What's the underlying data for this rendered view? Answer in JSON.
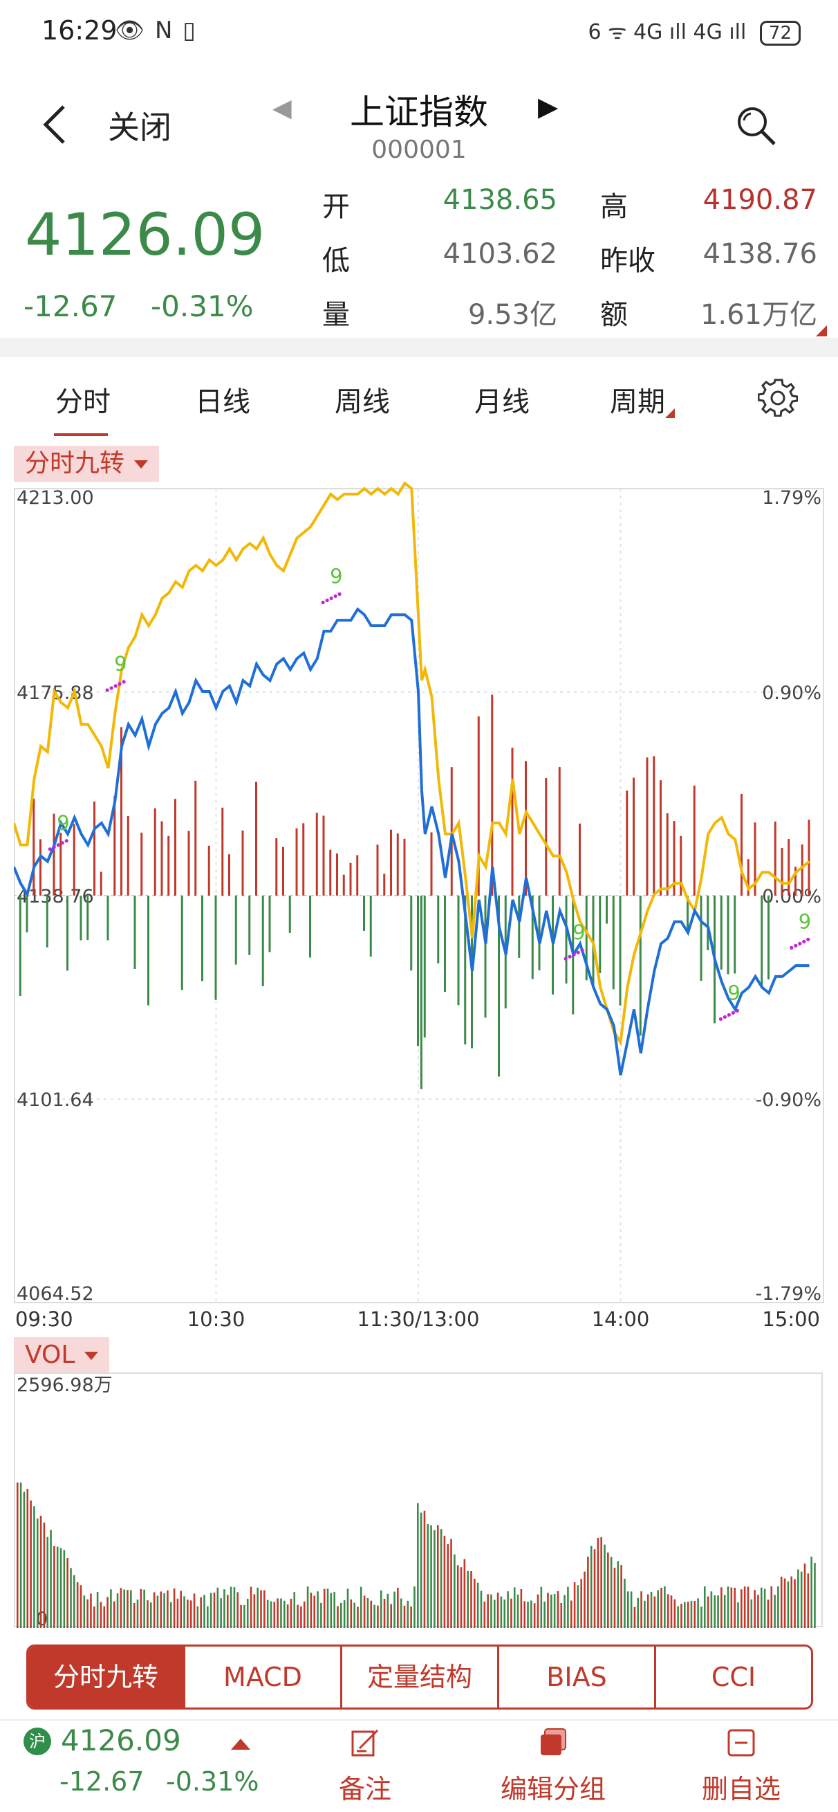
{
  "status_bar": {
    "time": "16:29",
    "left_icons": "👁 N ▯",
    "right_icons": "6 ᯤ 4G ıll 4G ıll",
    "battery": "72"
  },
  "header": {
    "close_label": "关闭",
    "title": "上证指数",
    "code": "000001"
  },
  "quote": {
    "price": "4126.09",
    "change": "-12.67",
    "change_pct": "-0.31%",
    "fields": [
      {
        "label": "开",
        "value": "4138.65",
        "color": "green"
      },
      {
        "label": "高",
        "value": "4190.87",
        "color": "red"
      },
      {
        "label": "低",
        "value": "4103.62",
        "color": "gray"
      },
      {
        "label": "昨收",
        "value": "4138.76",
        "color": "gray"
      },
      {
        "label": "量",
        "value": "9.53亿",
        "color": "gray"
      },
      {
        "label": "额",
        "value": "1.61万亿",
        "color": "gray"
      }
    ]
  },
  "tabs": [
    "分时",
    "日线",
    "周线",
    "月线",
    "周期"
  ],
  "indicator_tag": "分时九转",
  "volume_tag": "VOL",
  "indicator_tabs": [
    "分时九转",
    "MACD",
    "定量结构",
    "BIAS",
    "CCI"
  ],
  "bottom": {
    "exchange_badge": "沪",
    "price": "4126.09",
    "change": "-12.67",
    "change_pct": "-0.31%",
    "actions": [
      "备注",
      "编辑分组",
      "删自选"
    ]
  },
  "chart_data": {
    "type": "line",
    "y_left_ticks": [
      "4213.00",
      "4175.88",
      "4138.76",
      "4101.64",
      "4064.52"
    ],
    "y_right_ticks": [
      "1.79%",
      "0.90%",
      "0.00%",
      "-0.90%",
      "-1.79%"
    ],
    "x_ticks": [
      "09:30",
      "10:30",
      "11:30/13:00",
      "14:00",
      "15:00"
    ],
    "ylim": [
      4064.52,
      4213.0
    ],
    "colors": {
      "price": "#1f6fd6",
      "avg": "#f2b807",
      "up": "#c0392b",
      "down": "#3c8a4a",
      "nine": "#c026d3",
      "nine_label": "#5cc43c"
    },
    "price": [
      [
        0,
        4144
      ],
      [
        2,
        4141
      ],
      [
        4,
        4139
      ],
      [
        6,
        4144
      ],
      [
        8,
        4146
      ],
      [
        10,
        4145
      ],
      [
        12,
        4148
      ],
      [
        14,
        4152
      ],
      [
        16,
        4150
      ],
      [
        18,
        4153
      ],
      [
        20,
        4150
      ],
      [
        22,
        4148
      ],
      [
        24,
        4151
      ],
      [
        26,
        4152
      ],
      [
        28,
        4150
      ],
      [
        30,
        4156
      ],
      [
        32,
        4166
      ],
      [
        34,
        4170
      ],
      [
        36,
        4168
      ],
      [
        38,
        4171
      ],
      [
        40,
        4166
      ],
      [
        42,
        4170
      ],
      [
        44,
        4172
      ],
      [
        46,
        4173
      ],
      [
        48,
        4176
      ],
      [
        50,
        4172
      ],
      [
        52,
        4174
      ],
      [
        54,
        4178
      ],
      [
        56,
        4176
      ],
      [
        58,
        4176
      ],
      [
        60,
        4173
      ],
      [
        62,
        4176
      ],
      [
        64,
        4177
      ],
      [
        66,
        4174
      ],
      [
        68,
        4178
      ],
      [
        70,
        4177
      ],
      [
        72,
        4181
      ],
      [
        74,
        4179
      ],
      [
        76,
        4178
      ],
      [
        78,
        4181
      ],
      [
        80,
        4182
      ],
      [
        82,
        4180
      ],
      [
        84,
        4182
      ],
      [
        86,
        4183
      ],
      [
        88,
        4180
      ],
      [
        90,
        4182
      ],
      [
        92,
        4187
      ],
      [
        94,
        4187
      ],
      [
        96,
        4189
      ],
      [
        98,
        4189
      ],
      [
        100,
        4189
      ],
      [
        102,
        4191
      ],
      [
        104,
        4190
      ],
      [
        106,
        4188
      ],
      [
        108,
        4188
      ],
      [
        110,
        4188
      ],
      [
        112,
        4190
      ],
      [
        114,
        4190
      ],
      [
        116,
        4190
      ],
      [
        118,
        4189
      ],
      [
        120,
        4176
      ],
      [
        121,
        4158
      ],
      [
        122,
        4150
      ],
      [
        124,
        4155
      ],
      [
        126,
        4150
      ],
      [
        128,
        4142
      ],
      [
        130,
        4150
      ],
      [
        132,
        4145
      ],
      [
        134,
        4135
      ],
      [
        136,
        4125
      ],
      [
        138,
        4138
      ],
      [
        140,
        4130
      ],
      [
        142,
        4144
      ],
      [
        144,
        4133
      ],
      [
        146,
        4128
      ],
      [
        148,
        4138
      ],
      [
        150,
        4134
      ],
      [
        152,
        4142
      ],
      [
        154,
        4136
      ],
      [
        156,
        4130
      ],
      [
        158,
        4136
      ],
      [
        160,
        4130
      ],
      [
        162,
        4136
      ],
      [
        164,
        4133
      ],
      [
        166,
        4128
      ],
      [
        168,
        4130
      ],
      [
        170,
        4126
      ],
      [
        172,
        4122
      ],
      [
        174,
        4119
      ],
      [
        176,
        4118
      ],
      [
        178,
        4115
      ],
      [
        180,
        4106
      ],
      [
        182,
        4112
      ],
      [
        184,
        4118
      ],
      [
        186,
        4110
      ],
      [
        188,
        4118
      ],
      [
        190,
        4125
      ],
      [
        192,
        4130
      ],
      [
        194,
        4131
      ],
      [
        196,
        4134
      ],
      [
        198,
        4134
      ],
      [
        200,
        4132
      ],
      [
        202,
        4136
      ],
      [
        204,
        4134
      ],
      [
        206,
        4133
      ],
      [
        208,
        4127
      ],
      [
        210,
        4123
      ],
      [
        212,
        4120
      ],
      [
        214,
        4118
      ],
      [
        216,
        4121
      ],
      [
        218,
        4122
      ],
      [
        220,
        4124
      ],
      [
        222,
        4122
      ],
      [
        224,
        4121
      ],
      [
        226,
        4124
      ],
      [
        228,
        4124
      ],
      [
        230,
        4125
      ],
      [
        232,
        4126
      ],
      [
        234,
        4126
      ],
      [
        236,
        4126
      ]
    ],
    "avg": [
      [
        0,
        4152
      ],
      [
        2,
        4148
      ],
      [
        4,
        4148
      ],
      [
        6,
        4160
      ],
      [
        8,
        4166
      ],
      [
        10,
        4165
      ],
      [
        12,
        4176
      ],
      [
        14,
        4174
      ],
      [
        16,
        4173
      ],
      [
        18,
        4176
      ],
      [
        20,
        4170
      ],
      [
        22,
        4170
      ],
      [
        24,
        4168
      ],
      [
        26,
        4166
      ],
      [
        28,
        4162
      ],
      [
        30,
        4172
      ],
      [
        32,
        4180
      ],
      [
        34,
        4184
      ],
      [
        36,
        4186
      ],
      [
        38,
        4190
      ],
      [
        40,
        4188
      ],
      [
        42,
        4190
      ],
      [
        44,
        4193
      ],
      [
        46,
        4194
      ],
      [
        48,
        4196
      ],
      [
        50,
        4195
      ],
      [
        52,
        4198
      ],
      [
        54,
        4199
      ],
      [
        56,
        4198
      ],
      [
        58,
        4200
      ],
      [
        60,
        4199
      ],
      [
        62,
        4200
      ],
      [
        64,
        4202
      ],
      [
        66,
        4200
      ],
      [
        68,
        4202
      ],
      [
        70,
        4203
      ],
      [
        72,
        4202
      ],
      [
        74,
        4204
      ],
      [
        76,
        4201
      ],
      [
        78,
        4199
      ],
      [
        80,
        4198
      ],
      [
        82,
        4201
      ],
      [
        84,
        4204
      ],
      [
        86,
        4205
      ],
      [
        88,
        4206
      ],
      [
        90,
        4208
      ],
      [
        92,
        4210
      ],
      [
        94,
        4212
      ],
      [
        96,
        4211
      ],
      [
        98,
        4212
      ],
      [
        100,
        4212
      ],
      [
        102,
        4212
      ],
      [
        104,
        4213
      ],
      [
        106,
        4212
      ],
      [
        108,
        4213
      ],
      [
        110,
        4212
      ],
      [
        112,
        4213
      ],
      [
        114,
        4212
      ],
      [
        116,
        4214
      ],
      [
        118,
        4213
      ],
      [
        120,
        4190
      ],
      [
        121,
        4178
      ],
      [
        122,
        4180
      ],
      [
        124,
        4175
      ],
      [
        126,
        4160
      ],
      [
        128,
        4150
      ],
      [
        130,
        4150
      ],
      [
        132,
        4152
      ],
      [
        134,
        4142
      ],
      [
        136,
        4131
      ],
      [
        138,
        4146
      ],
      [
        140,
        4144
      ],
      [
        142,
        4152
      ],
      [
        144,
        4152
      ],
      [
        146,
        4150
      ],
      [
        148,
        4160
      ],
      [
        150,
        4150
      ],
      [
        152,
        4154
      ],
      [
        154,
        4152
      ],
      [
        156,
        4150
      ],
      [
        158,
        4148
      ],
      [
        160,
        4146
      ],
      [
        162,
        4146
      ],
      [
        164,
        4143
      ],
      [
        166,
        4138
      ],
      [
        168,
        4134
      ],
      [
        170,
        4132
      ],
      [
        172,
        4130
      ],
      [
        174,
        4122
      ],
      [
        176,
        4118
      ],
      [
        178,
        4114
      ],
      [
        180,
        4112
      ],
      [
        182,
        4122
      ],
      [
        184,
        4128
      ],
      [
        186,
        4132
      ],
      [
        188,
        4136
      ],
      [
        190,
        4139
      ],
      [
        192,
        4140
      ],
      [
        194,
        4140
      ],
      [
        196,
        4141
      ],
      [
        198,
        4141
      ],
      [
        200,
        4138
      ],
      [
        202,
        4136
      ],
      [
        204,
        4142
      ],
      [
        206,
        4150
      ],
      [
        208,
        4152
      ],
      [
        210,
        4153
      ],
      [
        212,
        4150
      ],
      [
        214,
        4149
      ],
      [
        216,
        4143
      ],
      [
        218,
        4140
      ],
      [
        220,
        4141
      ],
      [
        222,
        4143
      ],
      [
        224,
        4143
      ],
      [
        226,
        4142
      ],
      [
        228,
        4141
      ],
      [
        230,
        4141
      ],
      [
        232,
        4143
      ],
      [
        234,
        4144
      ],
      [
        236,
        4145
      ]
    ],
    "nine_labels": [
      {
        "t": 14,
        "v": 4148,
        "text": "9"
      },
      {
        "t": 31,
        "v": 4177,
        "text": "9"
      },
      {
        "t": 95,
        "v": 4193,
        "text": "9"
      },
      {
        "t": 167,
        "v": 4128,
        "text": "9"
      },
      {
        "t": 213,
        "v": 4117,
        "text": "9"
      },
      {
        "t": 234,
        "v": 4130,
        "text": "9"
      }
    ],
    "volume_max_label": "2596.98万",
    "volume_zero_label": "0"
  }
}
